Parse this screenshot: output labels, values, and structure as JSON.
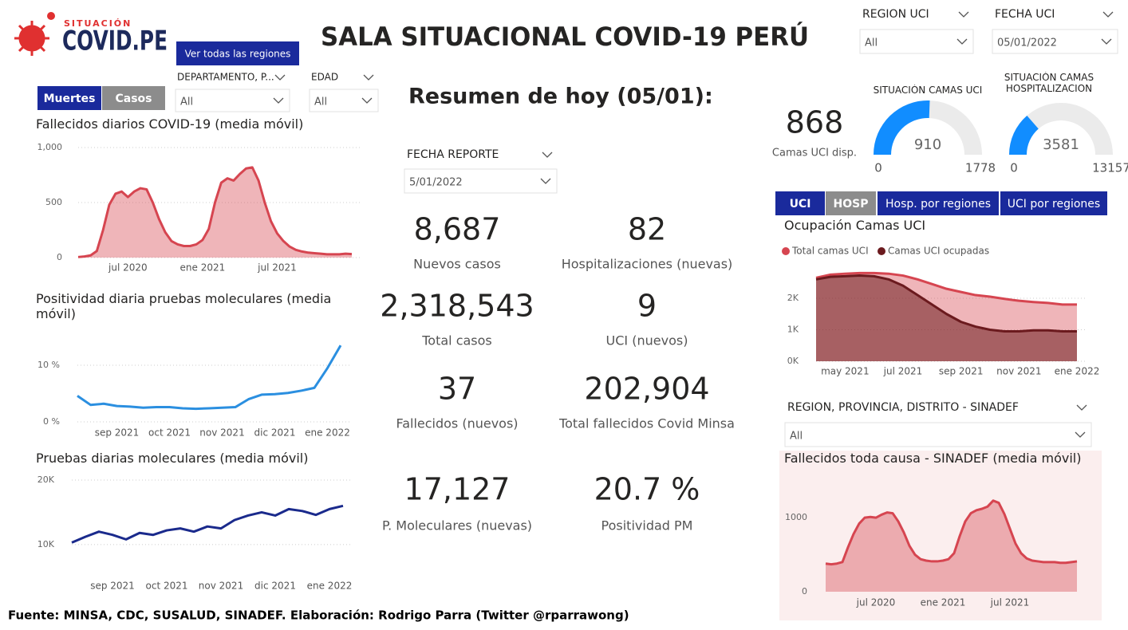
{
  "header": {
    "logo_small": "SITUACIÓN",
    "logo": "COVID.PE",
    "title": "SALA SITUACIONAL COVID-19 PERÚ",
    "button": "Ver todas las regiones",
    "summary_title": "Resumen de hoy (05/01):"
  },
  "filters": [
    {
      "label": "DEPARTAMENTO, P...",
      "value": "All"
    },
    {
      "label": "EDAD",
      "value": "All"
    },
    {
      "label": "REGION UCI",
      "value": "All"
    },
    {
      "label": "FECHA UCI",
      "value": "05/01/2022"
    },
    {
      "label": "FECHA REPORTE",
      "value": "5/01/2022"
    },
    {
      "label": "REGION, PROVINCIA, DISTRITO - SINADEF",
      "value": "All"
    }
  ],
  "tabs_left": [
    "Muertes",
    "Casos"
  ],
  "tabs_right": [
    "UCI",
    "HOSP",
    "Hosp. por regiones",
    "UCI por regiones"
  ],
  "kpis": [
    {
      "value": "8,687",
      "label": "Nuevos casos"
    },
    {
      "value": "82",
      "label": "Hospitalizaciones (nuevas)"
    },
    {
      "value": "2,318,543",
      "label": "Total casos"
    },
    {
      "value": "9",
      "label": "UCI (nuevos)"
    },
    {
      "value": "37",
      "label": "Fallecidos  (nuevos)"
    },
    {
      "value": "202,904",
      "label": "Total fallecidos Covid Minsa"
    },
    {
      "value": "17,127",
      "label": "P. Moleculares (nuevas)"
    },
    {
      "value": "20.7 %",
      "label": "Positividad PM"
    }
  ],
  "uci_available": {
    "value": "868",
    "label": "Camas UCI disp."
  },
  "gauges": [
    {
      "title": "SITUACIÓN CAMAS UCI",
      "value": 910,
      "min": 0,
      "max": 1778,
      "color": "#118dff"
    },
    {
      "title": "SITUACIÓN CAMAS HOSPITALIZACION",
      "value": 3581,
      "min": 0,
      "max": 13157,
      "color": "#118dff"
    }
  ],
  "chart_data": [
    {
      "type": "area",
      "title": "Fallecidos diarios COVID-19 (media móvil)",
      "categories": [
        null,
        null,
        null,
        null,
        null,
        null,
        null,
        null,
        "jul 2020",
        null,
        null,
        null,
        null,
        null,
        null,
        null,
        null,
        null,
        null,
        null,
        "ene 2021",
        null,
        null,
        null,
        null,
        null,
        null,
        null,
        null,
        null,
        null,
        null,
        "jul 2021",
        null,
        null,
        null,
        null,
        null,
        null,
        null,
        null,
        null,
        null,
        null,
        null
      ],
      "series": [
        {
          "color": "#d64550",
          "values": [
            5,
            10,
            20,
            60,
            250,
            480,
            580,
            600,
            550,
            600,
            630,
            620,
            500,
            350,
            230,
            150,
            120,
            105,
            105,
            120,
            160,
            260,
            500,
            680,
            720,
            700,
            760,
            810,
            820,
            700,
            500,
            330,
            220,
            150,
            100,
            70,
            55,
            45,
            40,
            35,
            30,
            30,
            30,
            35,
            32
          ]
        }
      ],
      "ylim": [
        0,
        1000
      ],
      "yticks": [
        0,
        500,
        {
          "value": 1000,
          "label": "1,000"
        }
      ],
      "grid": true
    },
    {
      "type": "line",
      "title": "Positividad diaria pruebas moleculares (media móvil)",
      "categories": [
        null,
        null,
        null,
        "sep 2021",
        null,
        null,
        null,
        "oct 2021",
        null,
        null,
        null,
        "nov 2021",
        null,
        null,
        null,
        "dic 2021",
        null,
        null,
        null,
        "ene 2022",
        null
      ],
      "series": [
        {
          "color": "#2b8fe0",
          "values": [
            4.6,
            3.0,
            3.2,
            2.8,
            2.7,
            2.5,
            2.6,
            2.6,
            2.4,
            2.3,
            2.4,
            2.5,
            2.6,
            4.0,
            4.8,
            4.9,
            5.1,
            5.5,
            6.0,
            9.5,
            13.5
          ]
        }
      ],
      "ylim": [
        0,
        14
      ],
      "yticks": [
        {
          "value": 0,
          "label": "0 %"
        },
        {
          "value": 10,
          "label": "10 %"
        }
      ],
      "grid": true
    },
    {
      "type": "line",
      "title": "Pruebas diarias moleculares (media móvil)",
      "categories": [
        null,
        null,
        null,
        "sep 2021",
        null,
        null,
        null,
        "oct 2021",
        null,
        null,
        null,
        "nov 2021",
        null,
        null,
        null,
        "dic 2021",
        null,
        null,
        null,
        "ene 2022",
        null
      ],
      "series": [
        {
          "color": "#1a2a8c",
          "values": [
            10300,
            11200,
            12000,
            11500,
            10800,
            11800,
            11500,
            12200,
            12500,
            12000,
            12800,
            12500,
            13800,
            14500,
            15000,
            14500,
            15500,
            15200,
            14600,
            15500,
            16000
          ]
        }
      ],
      "ylim": [
        8000,
        20000
      ],
      "yticks": [
        {
          "value": 10000,
          "label": "10K"
        },
        {
          "value": 20000,
          "label": "20K"
        }
      ],
      "grid": true
    },
    {
      "type": "area",
      "title": "Ocupación Camas UCI",
      "categories": [
        null,
        null,
        "may 2021",
        null,
        null,
        null,
        "jul 2021",
        null,
        null,
        null,
        "sep 2021",
        null,
        null,
        null,
        "nov 2021",
        null,
        null,
        null,
        "ene 2022"
      ],
      "series": [
        {
          "name": "Total camas UCI",
          "color": "#d64550",
          "values": [
            2650,
            2750,
            2780,
            2800,
            2800,
            2780,
            2720,
            2600,
            2450,
            2300,
            2200,
            2100,
            2050,
            1980,
            1920,
            1880,
            1850,
            1800,
            1800
          ]
        },
        {
          "name": "Camas UCI ocupadas",
          "color": "#6b1a1e",
          "values": [
            2600,
            2680,
            2700,
            2720,
            2700,
            2600,
            2400,
            2100,
            1800,
            1500,
            1250,
            1100,
            1000,
            950,
            950,
            980,
            980,
            950,
            950
          ]
        }
      ],
      "ylim": [
        0,
        3000
      ],
      "yticks": [
        {
          "value": 0,
          "label": "0K"
        },
        {
          "value": 1000,
          "label": "1K"
        },
        {
          "value": 2000,
          "label": "2K"
        }
      ],
      "grid": true,
      "legend": "top"
    },
    {
      "type": "area",
      "title": "Fallecidos toda causa - SINADEF (media móvil)",
      "categories": [
        null,
        null,
        null,
        null,
        null,
        null,
        null,
        null,
        null,
        "jul 2020",
        null,
        null,
        null,
        null,
        null,
        null,
        null,
        null,
        null,
        null,
        null,
        "ene 2021",
        null,
        null,
        null,
        null,
        null,
        null,
        null,
        null,
        null,
        null,
        null,
        "jul 2021",
        null,
        null,
        null,
        null,
        null,
        null,
        null,
        null,
        null,
        null,
        null,
        null
      ],
      "series": [
        {
          "color": "#d64550",
          "values": [
            380,
            370,
            380,
            400,
            600,
            780,
            920,
            1000,
            1010,
            1000,
            1040,
            1070,
            1060,
            950,
            800,
            620,
            500,
            440,
            420,
            410,
            410,
            420,
            440,
            520,
            750,
            950,
            1060,
            1100,
            1120,
            1150,
            1230,
            1200,
            1050,
            850,
            650,
            520,
            450,
            420,
            410,
            400,
            400,
            400,
            390,
            390,
            400,
            410
          ]
        }
      ],
      "ylim": [
        0,
        1400
      ],
      "yticks": [
        0,
        1000
      ],
      "grid": false
    }
  ],
  "footer": "Fuente: MINSA, CDC, SUSALUD, SINADEF. Elaboración: Rodrigo Parra (Twitter @rparrawong)"
}
